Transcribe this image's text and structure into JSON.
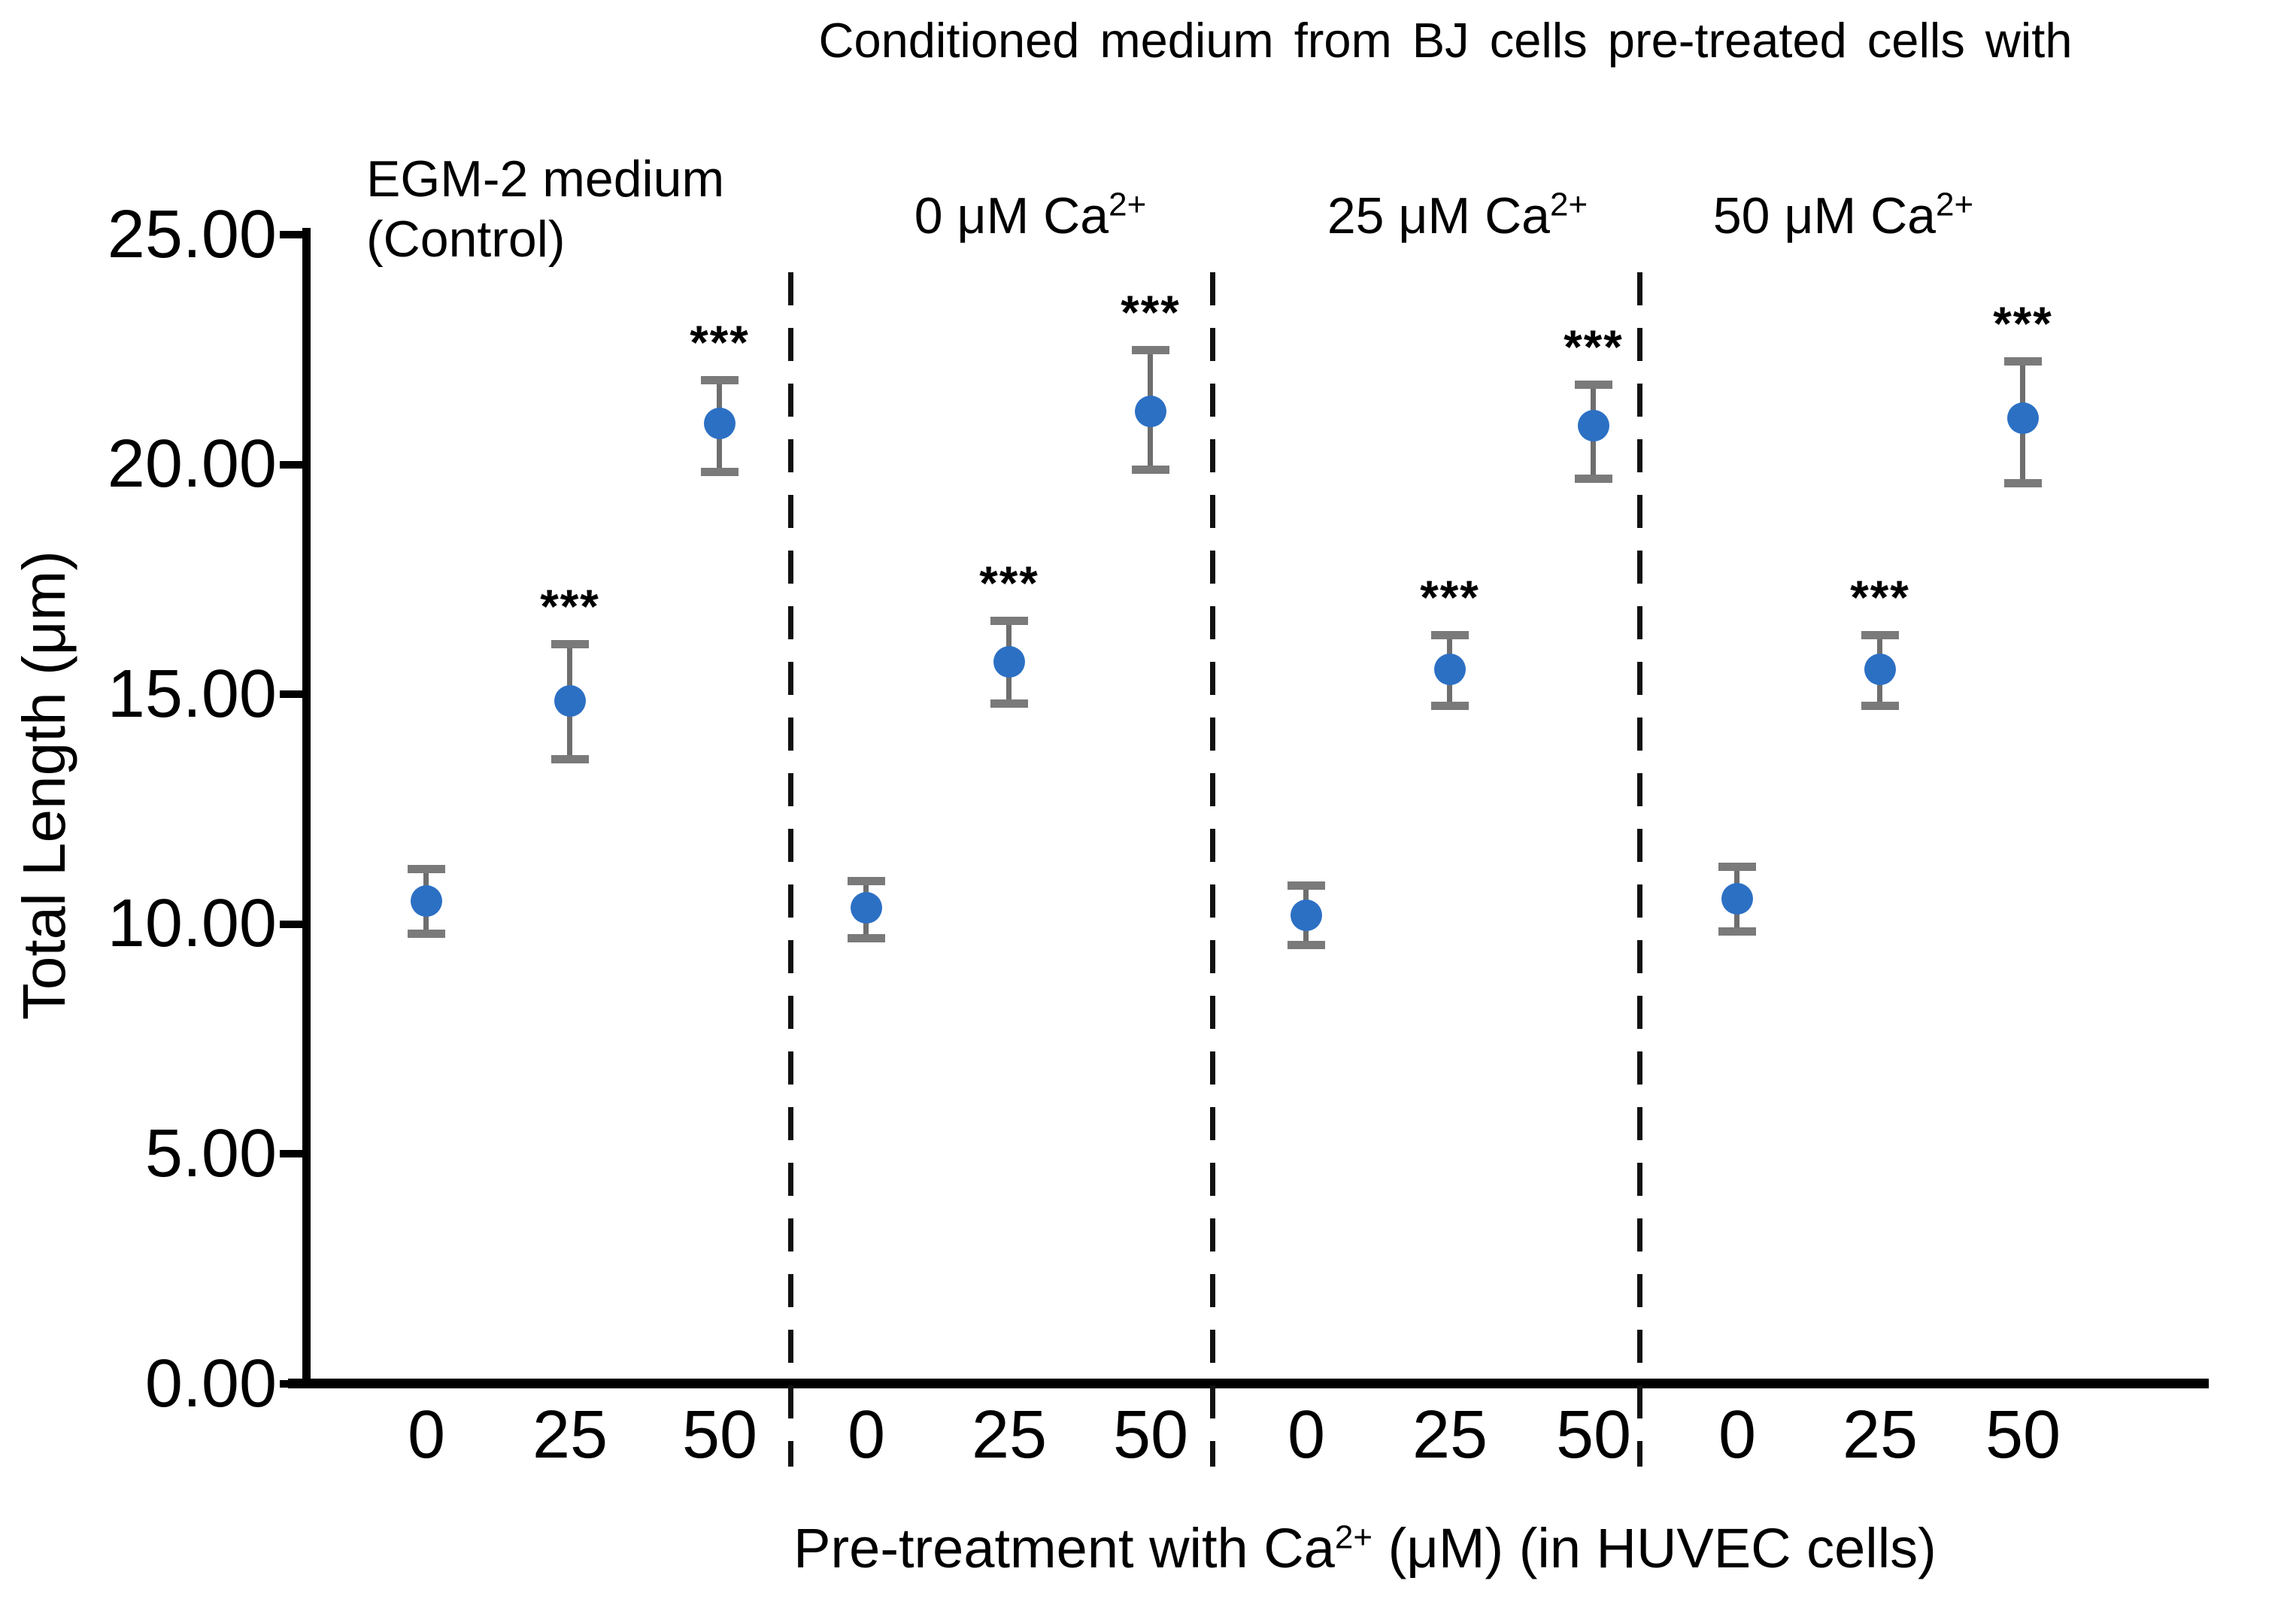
{
  "figure": {
    "top_annotation": "Conditioned medium from BJ cells pre-treated cells with",
    "y_axis_label": "Total Length (μm)",
    "x_axis_title_pre": "Pre-treatment with Ca",
    "x_axis_title_sup": "2+",
    "x_axis_title_post": " (μM) (in HUVEC cells)",
    "significance_marker": "***"
  },
  "chart_data": {
    "type": "scatter",
    "title": "Conditioned medium from BJ cells pre-treated cells with",
    "xlabel": "Pre-treatment with Ca2+ (μM) (in HUVEC cells)",
    "ylabel": "Total Length (μm)",
    "ylim": [
      0,
      25
    ],
    "grid": false,
    "legend": false,
    "marker_color": "#2c70c4",
    "error_bar_color": "#6e6e6e",
    "y_ticks": [
      {
        "value": 0,
        "label": "0.00"
      },
      {
        "value": 5,
        "label": "5.00"
      },
      {
        "value": 10,
        "label": "10.00"
      },
      {
        "value": 15,
        "label": "15.00"
      },
      {
        "value": 20,
        "label": "20.00"
      },
      {
        "value": 25,
        "label": "25.00"
      }
    ],
    "groups": [
      {
        "label": "EGM-2 medium (Control)",
        "label_lines": [
          "EGM-2 medium",
          "(Control)"
        ],
        "points": [
          {
            "x_label": "0",
            "mean": 10.5,
            "err_hi": 0.7,
            "err_lo": 0.7,
            "sig": ""
          },
          {
            "x_label": "25",
            "mean": 14.85,
            "err_hi": 1.25,
            "err_lo": 1.25,
            "sig": "***"
          },
          {
            "x_label": "50",
            "mean": 20.9,
            "err_hi": 0.95,
            "err_lo": 1.05,
            "sig": "***"
          }
        ]
      },
      {
        "label": "0 μM Ca2+",
        "label_pre": "0 μM Ca",
        "label_sup": "2+",
        "points": [
          {
            "x_label": "0",
            "mean": 10.35,
            "err_hi": 0.6,
            "err_lo": 0.65,
            "sig": ""
          },
          {
            "x_label": "25",
            "mean": 15.7,
            "err_hi": 0.9,
            "err_lo": 0.9,
            "sig": "***"
          },
          {
            "x_label": "50",
            "mean": 21.15,
            "err_hi": 1.35,
            "err_lo": 1.25,
            "sig": "***"
          }
        ]
      },
      {
        "label": "25 μM Ca2+",
        "label_pre": "25 μM Ca",
        "label_sup": "2+",
        "points": [
          {
            "x_label": "0",
            "mean": 10.2,
            "err_hi": 0.65,
            "err_lo": 0.65,
            "sig": ""
          },
          {
            "x_label": "25",
            "mean": 15.55,
            "err_hi": 0.75,
            "err_lo": 0.8,
            "sig": "***"
          },
          {
            "x_label": "50",
            "mean": 20.85,
            "err_hi": 0.9,
            "err_lo": 1.15,
            "sig": "***"
          }
        ]
      },
      {
        "label": "50 μM Ca2+",
        "label_pre": "50 μM Ca",
        "label_sup": "2+",
        "points": [
          {
            "x_label": "0",
            "mean": 10.55,
            "err_hi": 0.7,
            "err_lo": 0.7,
            "sig": ""
          },
          {
            "x_label": "25",
            "mean": 15.55,
            "err_hi": 0.75,
            "err_lo": 0.8,
            "sig": "***"
          },
          {
            "x_label": "50",
            "mean": 21.0,
            "err_hi": 1.25,
            "err_lo": 1.4,
            "sig": "***"
          }
        ]
      }
    ]
  }
}
